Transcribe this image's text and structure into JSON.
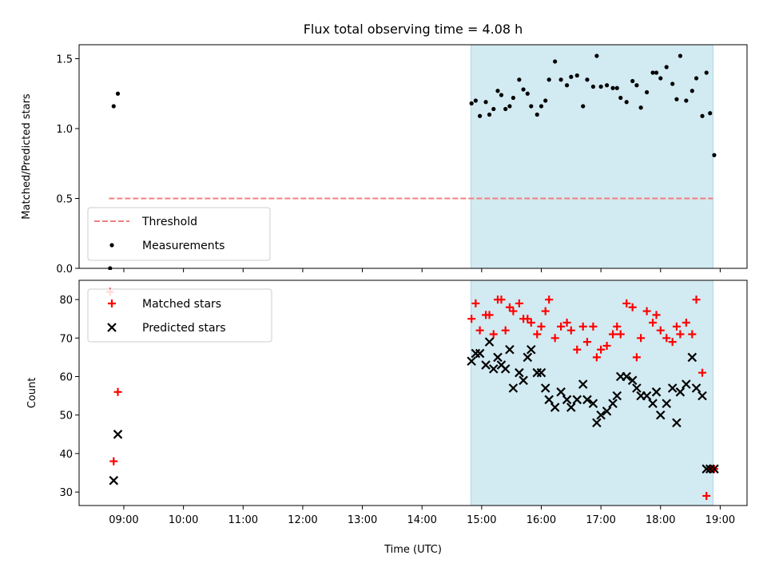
{
  "chart_data": [
    {
      "type": "scatter",
      "title": "Flux total observing time = 4.08 h",
      "xlabel": "",
      "ylabel": "Matched/Predicted stars",
      "xlim": [
        8.25,
        19.45
      ],
      "ylim": [
        0,
        1.6
      ],
      "yticks": [
        0.0,
        0.5,
        1.0,
        1.5
      ],
      "ytick_labels": [
        "0.0",
        "0.5",
        "1.0",
        "1.5"
      ],
      "shaded_region": [
        14.82,
        18.88
      ],
      "shade_color": "#add8e6",
      "threshold": {
        "name": "Threshold",
        "value": 0.5,
        "x_range": [
          8.75,
          18.88
        ],
        "color": "#f08080"
      },
      "legend": {
        "position": "lower-left",
        "entries": [
          "Threshold",
          "Measurements"
        ]
      },
      "series": [
        {
          "name": "Measurements",
          "marker": "dot",
          "color": "#000000",
          "x": [
            8.77,
            8.83,
            8.9,
            14.83,
            14.9,
            14.97,
            15.07,
            15.13,
            15.2,
            15.27,
            15.33,
            15.4,
            15.47,
            15.53,
            15.63,
            15.7,
            15.77,
            15.83,
            15.93,
            16.0,
            16.07,
            16.13,
            16.23,
            16.33,
            16.43,
            16.5,
            16.6,
            16.7,
            16.77,
            16.87,
            16.93,
            17.0,
            17.1,
            17.2,
            17.27,
            17.33,
            17.43,
            17.53,
            17.6,
            17.67,
            17.77,
            17.87,
            17.93,
            18.0,
            18.1,
            18.2,
            18.27,
            18.33,
            18.43,
            18.53,
            18.6,
            18.7,
            18.77,
            18.83,
            18.9
          ],
          "y": [
            0.0,
            1.16,
            1.25,
            1.18,
            1.2,
            1.09,
            1.19,
            1.1,
            1.14,
            1.27,
            1.24,
            1.14,
            1.16,
            1.22,
            1.35,
            1.28,
            1.25,
            1.16,
            1.1,
            1.16,
            1.2,
            1.35,
            1.48,
            1.35,
            1.31,
            1.37,
            1.38,
            1.16,
            1.35,
            1.3,
            1.52,
            1.3,
            1.31,
            1.29,
            1.29,
            1.22,
            1.19,
            1.34,
            1.31,
            1.15,
            1.26,
            1.4,
            1.4,
            1.36,
            1.44,
            1.32,
            1.21,
            1.52,
            1.2,
            1.27,
            1.36,
            1.09,
            1.4,
            1.11,
            0.81
          ]
        }
      ]
    },
    {
      "type": "scatter",
      "title": "",
      "xlabel": "Time (UTC)",
      "ylabel": "Count",
      "xlim": [
        8.25,
        19.45
      ],
      "ylim": [
        26.5,
        85
      ],
      "yticks": [
        30,
        40,
        50,
        60,
        70,
        80
      ],
      "ytick_labels": [
        "30",
        "40",
        "50",
        "60",
        "70",
        "80"
      ],
      "xticks": [
        9,
        10,
        11,
        12,
        13,
        14,
        15,
        16,
        17,
        18,
        19
      ],
      "xtick_labels": [
        "09:00",
        "10:00",
        "11:00",
        "12:00",
        "13:00",
        "14:00",
        "15:00",
        "16:00",
        "17:00",
        "18:00",
        "19:00"
      ],
      "shaded_region": [
        14.82,
        18.88
      ],
      "shade_color": "#add8e6",
      "legend": {
        "position": "top-left",
        "entries": [
          "Matched stars",
          "Predicted stars"
        ]
      },
      "series": [
        {
          "name": "Matched stars",
          "marker": "plus",
          "color": "#ff0000",
          "x": [
            8.77,
            8.83,
            8.9,
            14.83,
            14.9,
            14.97,
            15.07,
            15.13,
            15.2,
            15.27,
            15.33,
            15.4,
            15.47,
            15.53,
            15.63,
            15.7,
            15.77,
            15.83,
            15.93,
            16.0,
            16.07,
            16.13,
            16.23,
            16.33,
            16.43,
            16.5,
            16.6,
            16.7,
            16.77,
            16.87,
            16.93,
            17.0,
            17.1,
            17.2,
            17.27,
            17.33,
            17.43,
            17.53,
            17.6,
            17.67,
            17.77,
            17.87,
            17.93,
            18.0,
            18.1,
            18.2,
            18.27,
            18.33,
            18.43,
            18.53,
            18.6,
            18.7,
            18.77,
            18.83,
            18.9
          ],
          "y": [
            82,
            38,
            56,
            75,
            79,
            72,
            76,
            76,
            71,
            80,
            80,
            72,
            78,
            77,
            79,
            75,
            75,
            74,
            71,
            73,
            77,
            80,
            70,
            73,
            74,
            72,
            67,
            73,
            69,
            73,
            65,
            67,
            68,
            71,
            73,
            71,
            79,
            78,
            65,
            70,
            77,
            74,
            76,
            72,
            70,
            69,
            73,
            71,
            74,
            71,
            80,
            61,
            29,
            36,
            36
          ]
        },
        {
          "name": "Predicted stars",
          "marker": "x",
          "color": "#000000",
          "x": [
            8.83,
            8.9,
            14.83,
            14.9,
            14.97,
            15.07,
            15.13,
            15.2,
            15.27,
            15.33,
            15.4,
            15.47,
            15.53,
            15.63,
            15.7,
            15.77,
            15.83,
            15.93,
            16.0,
            16.07,
            16.13,
            16.23,
            16.33,
            16.43,
            16.5,
            16.6,
            16.7,
            16.77,
            16.87,
            16.93,
            17.0,
            17.1,
            17.2,
            17.27,
            17.33,
            17.43,
            17.53,
            17.6,
            17.67,
            17.77,
            17.87,
            17.93,
            18.0,
            18.1,
            18.2,
            18.27,
            18.33,
            18.43,
            18.53,
            18.6,
            18.7,
            18.77,
            18.83,
            18.9
          ],
          "y": [
            33,
            45,
            64,
            66,
            66,
            63,
            69,
            62,
            65,
            63,
            62,
            67,
            57,
            61,
            59,
            65,
            67,
            61,
            61,
            57,
            54,
            52,
            56,
            54,
            52,
            54,
            58,
            54,
            53,
            48,
            50,
            51,
            53,
            55,
            60,
            60,
            59,
            57,
            55,
            55,
            53,
            56,
            50,
            53,
            57,
            48,
            56,
            58,
            65,
            57,
            55,
            36,
            36,
            36
          ]
        }
      ]
    }
  ]
}
